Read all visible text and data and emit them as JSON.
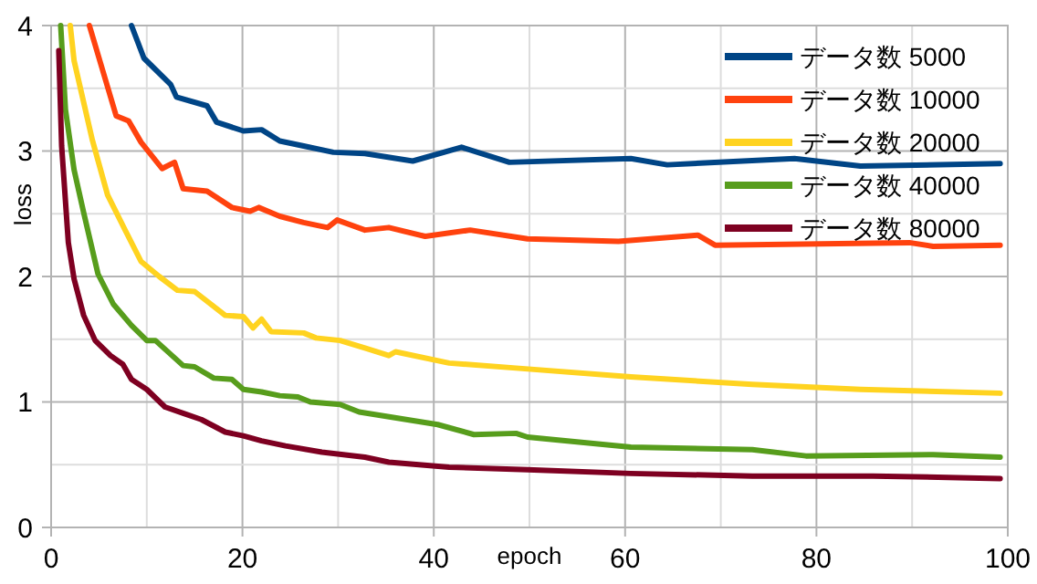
{
  "chart_data": {
    "type": "line",
    "xlabel": "epoch",
    "ylabel": "loss",
    "xlim": [
      0,
      100
    ],
    "ylim": [
      0,
      4
    ],
    "xticks": [
      0,
      {
        "value": 10,
        "label": null
      },
      20,
      {
        "value": 30,
        "label": null
      },
      40,
      {
        "value": 50,
        "label": null
      },
      60,
      {
        "value": 70,
        "label": null
      },
      80,
      {
        "value": 90,
        "label": null
      },
      100
    ],
    "yticks": [
      0,
      {
        "value": 0.5,
        "label": null
      },
      1,
      {
        "value": 1.5,
        "label": null
      },
      2,
      {
        "value": 2.5,
        "label": null
      },
      3,
      {
        "value": 3.5,
        "label": null
      },
      4
    ],
    "grid": true,
    "legend": "top right",
    "marker": "none",
    "line_style": "solid",
    "series": [
      {
        "name": "データ数 5000",
        "color": "#004586",
        "x": [
          8.4,
          9.7,
          12.5,
          13.1,
          16.3,
          17.3,
          20.1,
          22,
          23.9,
          26.4,
          29.5,
          32.8,
          37.8,
          42.9,
          47.9,
          60.6,
          64.4,
          77.7,
          84.6,
          99.2
        ],
        "values": [
          4,
          3.74,
          3.53,
          3.43,
          3.36,
          3.23,
          3.16,
          3.17,
          3.08,
          3.04,
          2.99,
          2.98,
          2.92,
          3.03,
          2.91,
          2.94,
          2.89,
          2.94,
          2.88,
          2.9
        ]
      },
      {
        "name": "データ数 10000",
        "color": "#ff420e",
        "x": [
          4,
          6.8,
          8.1,
          9.4,
          11.6,
          12.9,
          13.8,
          16.3,
          18.9,
          20.8,
          21.7,
          23.9,
          26.4,
          28.9,
          29.9,
          32.8,
          35.3,
          39.1,
          43.8,
          49.8,
          59.3,
          67.6,
          69.4,
          89.7,
          92.2,
          99.2
        ],
        "values": [
          4,
          3.28,
          3.24,
          3.07,
          2.86,
          2.91,
          2.7,
          2.68,
          2.55,
          2.52,
          2.55,
          2.48,
          2.43,
          2.39,
          2.45,
          2.37,
          2.39,
          2.32,
          2.37,
          2.3,
          2.28,
          2.33,
          2.25,
          2.27,
          2.24,
          2.25
        ]
      },
      {
        "name": "データ数 20000",
        "color": "#ffd320",
        "x": [
          2,
          2.4,
          4.3,
          5.9,
          7.8,
          9.4,
          11.3,
          13.2,
          15,
          18.2,
          20.1,
          21.1,
          22,
          23,
          26.4,
          27.7,
          30.2,
          32.8,
          35.3,
          36,
          41.6,
          48.6,
          60.6,
          73.3,
          84.6,
          99.2
        ],
        "values": [
          4,
          3.72,
          3.09,
          2.65,
          2.36,
          2.12,
          2,
          1.89,
          1.88,
          1.69,
          1.68,
          1.59,
          1.66,
          1.56,
          1.55,
          1.51,
          1.49,
          1.43,
          1.37,
          1.4,
          1.31,
          1.27,
          1.2,
          1.14,
          1.1,
          1.07
        ]
      },
      {
        "name": "データ数 40000",
        "color": "#579d1c",
        "x": [
          1,
          1.5,
          2.4,
          3.4,
          4.9,
          6.5,
          8.4,
          10,
          10.9,
          13.8,
          15,
          17,
          18.9,
          20.1,
          22,
          23.9,
          25.8,
          27.1,
          30.2,
          32.2,
          40.4,
          44.2,
          48.6,
          49.8,
          60.6,
          73.3,
          78.9,
          92.2,
          99.2
        ],
        "values": [
          4,
          3.33,
          2.85,
          2.51,
          2.02,
          1.78,
          1.61,
          1.49,
          1.49,
          1.29,
          1.28,
          1.19,
          1.18,
          1.1,
          1.08,
          1.05,
          1.04,
          1,
          0.98,
          0.92,
          0.82,
          0.74,
          0.75,
          0.72,
          0.64,
          0.62,
          0.57,
          0.58,
          0.56
        ]
      },
      {
        "name": "データ数 80000",
        "color": "#7e0021",
        "x": [
          0.8,
          1.1,
          1.8,
          2.4,
          3.4,
          4.6,
          6.2,
          7.5,
          8.4,
          10,
          11.9,
          13.8,
          15.7,
          18.2,
          20.1,
          22,
          24.5,
          28.3,
          32.8,
          35.3,
          41.6,
          49.8,
          60.6,
          73.3,
          85.9,
          99.2
        ],
        "values": [
          3.8,
          3.04,
          2.27,
          1.98,
          1.69,
          1.49,
          1.37,
          1.3,
          1.18,
          1.1,
          0.96,
          0.91,
          0.86,
          0.76,
          0.73,
          0.69,
          0.65,
          0.6,
          0.56,
          0.52,
          0.48,
          0.46,
          0.43,
          0.41,
          0.41,
          0.39
        ]
      }
    ]
  }
}
